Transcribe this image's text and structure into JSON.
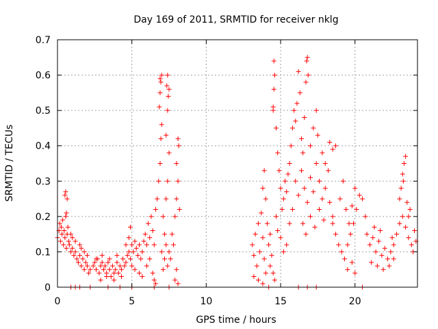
{
  "chart_data": {
    "type": "scatter",
    "title": "Day 169 of 2011, SRMTID for receiver nklg",
    "xlabel": "GPS time / hours",
    "ylabel": "SRMTID / TECUs",
    "xlim": [
      0,
      24.2
    ],
    "ylim": [
      0,
      0.7
    ],
    "xticks": [
      0,
      5,
      10,
      15,
      20
    ],
    "yticks": [
      0,
      0.1,
      0.2,
      0.3,
      0.4,
      0.5,
      0.6,
      0.7
    ],
    "xtick_labels": [
      "0",
      "5",
      "10",
      "15",
      "20"
    ],
    "ytick_labels": [
      "0",
      "0.1",
      "0.2",
      "0.3",
      "0.4",
      "0.5",
      "0.6",
      "0.7"
    ],
    "grid": true,
    "marker": "+",
    "color": "#ff0000",
    "series": [
      {
        "name": "SRMTID",
        "points": [
          [
            0.0,
            0.14
          ],
          [
            0.1,
            0.16
          ],
          [
            0.15,
            0.18
          ],
          [
            0.2,
            0.13
          ],
          [
            0.25,
            0.17
          ],
          [
            0.3,
            0.15
          ],
          [
            0.35,
            0.19
          ],
          [
            0.4,
            0.12
          ],
          [
            0.45,
            0.16
          ],
          [
            0.5,
            0.14
          ],
          [
            0.55,
            0.2
          ],
          [
            0.6,
            0.11
          ],
          [
            0.65,
            0.15
          ],
          [
            0.7,
            0.17
          ],
          [
            0.75,
            0.13
          ],
          [
            0.5,
            0.26
          ],
          [
            0.55,
            0.27
          ],
          [
            0.6,
            0.21
          ],
          [
            0.65,
            0.25
          ],
          [
            0.8,
            0.12
          ],
          [
            0.9,
            0.1
          ],
          [
            1.0,
            0.11
          ],
          [
            1.1,
            0.09
          ],
          [
            1.2,
            0.1
          ],
          [
            1.3,
            0.08
          ],
          [
            1.4,
            0.07
          ],
          [
            1.5,
            0.09
          ],
          [
            1.6,
            0.06
          ],
          [
            1.7,
            0.08
          ],
          [
            1.8,
            0.05
          ],
          [
            1.9,
            0.07
          ],
          [
            2.0,
            0.06
          ],
          [
            2.1,
            0.04
          ],
          [
            2.2,
            0.05
          ],
          [
            1.5,
            0.12
          ],
          [
            1.6,
            0.11
          ],
          [
            1.8,
            0.1
          ],
          [
            2.0,
            0.09
          ],
          [
            1.2,
            0.13
          ],
          [
            1.0,
            0.14
          ],
          [
            0.9,
            0.15
          ],
          [
            2.4,
            0.06
          ],
          [
            2.5,
            0.07
          ],
          [
            2.6,
            0.05
          ],
          [
            2.7,
            0.08
          ],
          [
            2.8,
            0.04
          ],
          [
            2.9,
            0.06
          ],
          [
            3.0,
            0.07
          ],
          [
            3.1,
            0.05
          ],
          [
            3.2,
            0.06
          ],
          [
            3.3,
            0.04
          ],
          [
            3.4,
            0.07
          ],
          [
            3.5,
            0.05
          ],
          [
            3.6,
            0.03
          ],
          [
            3.7,
            0.06
          ],
          [
            3.8,
            0.04
          ],
          [
            3.9,
            0.05
          ],
          [
            4.0,
            0.07
          ],
          [
            4.1,
            0.04
          ],
          [
            4.2,
            0.06
          ],
          [
            4.3,
            0.05
          ],
          [
            4.4,
            0.08
          ],
          [
            4.5,
            0.06
          ],
          [
            2.6,
            0.08
          ],
          [
            3.0,
            0.09
          ],
          [
            3.5,
            0.08
          ],
          [
            4.0,
            0.09
          ],
          [
            4.3,
            0.03
          ],
          [
            3.8,
            0.02
          ],
          [
            3.3,
            0.03
          ],
          [
            2.9,
            0.02
          ],
          [
            4.6,
            0.07
          ],
          [
            4.7,
            0.09
          ],
          [
            4.8,
            0.1
          ],
          [
            4.9,
            0.08
          ],
          [
            4.6,
            0.12
          ],
          [
            4.8,
            0.14
          ],
          [
            4.9,
            0.17
          ],
          [
            5.0,
            0.12
          ],
          [
            5.1,
            0.1
          ],
          [
            5.2,
            0.13
          ],
          [
            5.3,
            0.11
          ],
          [
            5.4,
            0.09
          ],
          [
            5.5,
            0.12
          ],
          [
            5.6,
            0.08
          ],
          [
            5.7,
            0.1
          ],
          [
            5.8,
            0.13
          ],
          [
            5.9,
            0.15
          ],
          [
            6.0,
            0.12
          ],
          [
            6.1,
            0.18
          ],
          [
            6.2,
            0.14
          ],
          [
            6.3,
            0.2
          ],
          [
            6.4,
            0.16
          ],
          [
            6.5,
            0.12
          ],
          [
            5.0,
            0.06
          ],
          [
            5.2,
            0.05
          ],
          [
            5.5,
            0.04
          ],
          [
            5.7,
            0.03
          ],
          [
            6.0,
            0.06
          ],
          [
            6.2,
            0.08
          ],
          [
            6.4,
            0.04
          ],
          [
            6.5,
            0.02
          ],
          [
            6.6,
            0.01
          ],
          [
            6.6,
            0.22
          ],
          [
            6.7,
            0.25
          ],
          [
            6.8,
            0.3
          ],
          [
            6.9,
            0.35
          ],
          [
            6.95,
            0.42
          ],
          [
            7.0,
            0.46
          ],
          [
            6.85,
            0.51
          ],
          [
            6.9,
            0.55
          ],
          [
            6.95,
            0.58
          ],
          [
            6.9,
            0.59
          ],
          [
            7.0,
            0.6
          ],
          [
            7.1,
            0.2
          ],
          [
            7.2,
            0.15
          ],
          [
            7.3,
            0.25
          ],
          [
            7.4,
            0.3
          ],
          [
            7.5,
            0.38
          ],
          [
            7.3,
            0.43
          ],
          [
            7.4,
            0.5
          ],
          [
            7.45,
            0.54
          ],
          [
            7.5,
            0.56
          ],
          [
            7.35,
            0.57
          ],
          [
            7.4,
            0.6
          ],
          [
            7.0,
            0.1
          ],
          [
            7.1,
            0.05
          ],
          [
            7.2,
            0.08
          ],
          [
            7.3,
            0.12
          ],
          [
            7.4,
            0.06
          ],
          [
            7.5,
            0.1
          ],
          [
            7.6,
            0.08
          ],
          [
            7.7,
            0.15
          ],
          [
            7.8,
            0.12
          ],
          [
            7.9,
            0.2
          ],
          [
            8.0,
            0.25
          ],
          [
            8.1,
            0.3
          ],
          [
            8.0,
            0.35
          ],
          [
            8.1,
            0.42
          ],
          [
            8.15,
            0.4
          ],
          [
            8.2,
            0.22
          ],
          [
            8.0,
            0.05
          ],
          [
            7.9,
            0.02
          ],
          [
            8.1,
            0.01
          ],
          [
            13.1,
            0.12
          ],
          [
            13.2,
            0.09
          ],
          [
            13.3,
            0.15
          ],
          [
            13.4,
            0.06
          ],
          [
            13.5,
            0.18
          ],
          [
            13.6,
            0.1
          ],
          [
            13.7,
            0.21
          ],
          [
            13.8,
            0.14
          ],
          [
            13.9,
            0.08
          ],
          [
            14.0,
            0.25
          ],
          [
            13.2,
            0.03
          ],
          [
            13.5,
            0.02
          ],
          [
            13.8,
            0.01
          ],
          [
            14.0,
            0.04
          ],
          [
            13.8,
            0.28
          ],
          [
            13.9,
            0.33
          ],
          [
            14.1,
            0.18
          ],
          [
            14.2,
            0.12
          ],
          [
            14.3,
            0.06
          ],
          [
            14.4,
            0.09
          ],
          [
            14.5,
            0.04
          ],
          [
            14.6,
            0.02
          ],
          [
            14.3,
            0.15
          ],
          [
            14.5,
            0.5
          ],
          [
            14.55,
            0.56
          ],
          [
            14.6,
            0.6
          ],
          [
            14.55,
            0.64
          ],
          [
            14.5,
            0.51
          ],
          [
            14.7,
            0.45
          ],
          [
            14.8,
            0.38
          ],
          [
            14.9,
            0.33
          ],
          [
            15.0,
            0.28
          ],
          [
            15.1,
            0.22
          ],
          [
            15.2,
            0.25
          ],
          [
            15.3,
            0.3
          ],
          [
            15.4,
            0.27
          ],
          [
            15.5,
            0.32
          ],
          [
            14.7,
            0.2
          ],
          [
            14.8,
            0.16
          ],
          [
            15.0,
            0.14
          ],
          [
            15.2,
            0.1
          ],
          [
            15.4,
            0.12
          ],
          [
            15.6,
            0.18
          ],
          [
            15.8,
            0.22
          ],
          [
            15.6,
            0.35
          ],
          [
            15.7,
            0.4
          ],
          [
            15.8,
            0.45
          ],
          [
            15.9,
            0.5
          ],
          [
            16.0,
            0.47
          ],
          [
            16.1,
            0.52
          ],
          [
            16.2,
            0.61
          ],
          [
            16.3,
            0.55
          ],
          [
            16.4,
            0.42
          ],
          [
            16.5,
            0.38
          ],
          [
            16.6,
            0.48
          ],
          [
            16.7,
            0.58
          ],
          [
            16.8,
            0.65
          ],
          [
            16.75,
            0.64
          ],
          [
            16.85,
            0.6
          ],
          [
            16.0,
            0.3
          ],
          [
            16.2,
            0.26
          ],
          [
            16.4,
            0.33
          ],
          [
            16.6,
            0.28
          ],
          [
            16.8,
            0.24
          ],
          [
            17.0,
            0.31
          ],
          [
            17.2,
            0.27
          ],
          [
            17.4,
            0.35
          ],
          [
            17.6,
            0.3
          ],
          [
            17.8,
            0.25
          ],
          [
            18.0,
            0.28
          ],
          [
            18.2,
            0.33
          ],
          [
            16.5,
            0.18
          ],
          [
            16.7,
            0.15
          ],
          [
            17.0,
            0.2
          ],
          [
            17.3,
            0.17
          ],
          [
            17.6,
            0.22
          ],
          [
            17.9,
            0.19
          ],
          [
            18.3,
            0.24
          ],
          [
            18.5,
            0.18
          ],
          [
            17.0,
            0.4
          ],
          [
            17.2,
            0.45
          ],
          [
            17.4,
            0.5
          ],
          [
            17.5,
            0.43
          ],
          [
            17.8,
            0.38
          ],
          [
            18.0,
            0.35
          ],
          [
            18.3,
            0.41
          ],
          [
            18.5,
            0.39
          ],
          [
            18.7,
            0.4
          ],
          [
            18.5,
            0.2
          ],
          [
            18.7,
            0.15
          ],
          [
            18.9,
            0.12
          ],
          [
            19.1,
            0.1
          ],
          [
            19.3,
            0.08
          ],
          [
            19.5,
            0.12
          ],
          [
            19.7,
            0.15
          ],
          [
            19.9,
            0.18
          ],
          [
            20.1,
            0.22
          ],
          [
            20.3,
            0.26
          ],
          [
            20.5,
            0.25
          ],
          [
            20.7,
            0.2
          ],
          [
            19.0,
            0.25
          ],
          [
            19.2,
            0.3
          ],
          [
            19.4,
            0.22
          ],
          [
            19.6,
            0.18
          ],
          [
            19.8,
            0.23
          ],
          [
            20.0,
            0.28
          ],
          [
            19.5,
            0.05
          ],
          [
            19.8,
            0.07
          ],
          [
            20.0,
            0.04
          ],
          [
            20.8,
            0.15
          ],
          [
            21.0,
            0.12
          ],
          [
            21.2,
            0.14
          ],
          [
            21.4,
            0.1
          ],
          [
            21.6,
            0.13
          ],
          [
            21.8,
            0.09
          ],
          [
            22.0,
            0.11
          ],
          [
            22.2,
            0.08
          ],
          [
            22.4,
            0.1
          ],
          [
            22.6,
            0.12
          ],
          [
            22.8,
            0.15
          ],
          [
            23.0,
            0.18
          ],
          [
            23.2,
            0.2
          ],
          [
            23.4,
            0.17
          ],
          [
            23.6,
            0.14
          ],
          [
            23.8,
            0.12
          ],
          [
            24.0,
            0.16
          ],
          [
            21.1,
            0.07
          ],
          [
            21.5,
            0.06
          ],
          [
            21.9,
            0.05
          ],
          [
            22.3,
            0.06
          ],
          [
            22.6,
            0.08
          ],
          [
            21.3,
            0.17
          ],
          [
            21.7,
            0.16
          ],
          [
            22.5,
            0.14
          ],
          [
            23.0,
            0.25
          ],
          [
            23.1,
            0.28
          ],
          [
            23.2,
            0.32
          ],
          [
            23.3,
            0.35
          ],
          [
            23.4,
            0.37
          ],
          [
            23.25,
            0.3
          ],
          [
            23.5,
            0.24
          ],
          [
            23.6,
            0.2
          ],
          [
            23.7,
            0.22
          ],
          [
            23.9,
            0.1
          ],
          [
            24.1,
            0.13
          ],
          [
            0.9,
            0.0
          ],
          [
            1.2,
            0.0
          ],
          [
            1.5,
            0.0
          ],
          [
            2.2,
            0.0
          ],
          [
            3.4,
            0.0
          ],
          [
            4.2,
            0.0
          ],
          [
            5.0,
            0.0
          ],
          [
            6.5,
            0.0
          ],
          [
            7.5,
            0.0
          ],
          [
            14.2,
            0.0
          ],
          [
            16.2,
            0.0
          ],
          [
            16.8,
            0.0
          ],
          [
            17.4,
            0.0
          ],
          [
            20.5,
            0.0
          ]
        ]
      }
    ]
  }
}
